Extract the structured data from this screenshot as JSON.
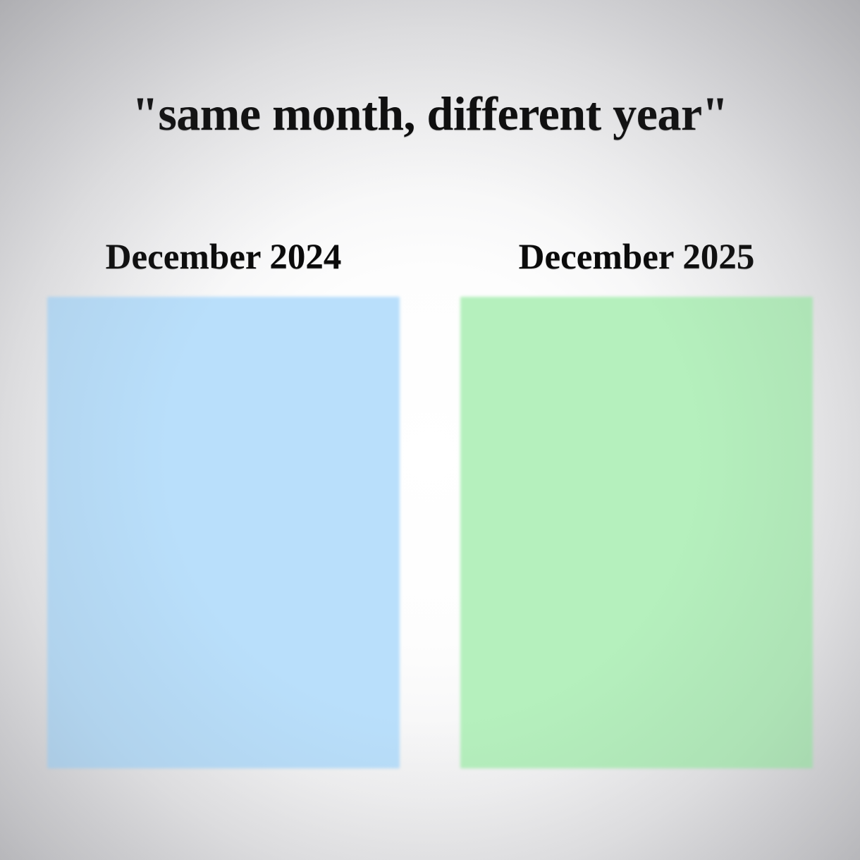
{
  "title": "\"same month, different year\"",
  "panels": [
    {
      "label": "December 2024",
      "color": "#b9dffb"
    },
    {
      "label": "December 2025",
      "color": "#b5f0bd"
    }
  ],
  "background": {
    "center_color": "#ffffff",
    "edge_color": "#d2d2d4"
  }
}
